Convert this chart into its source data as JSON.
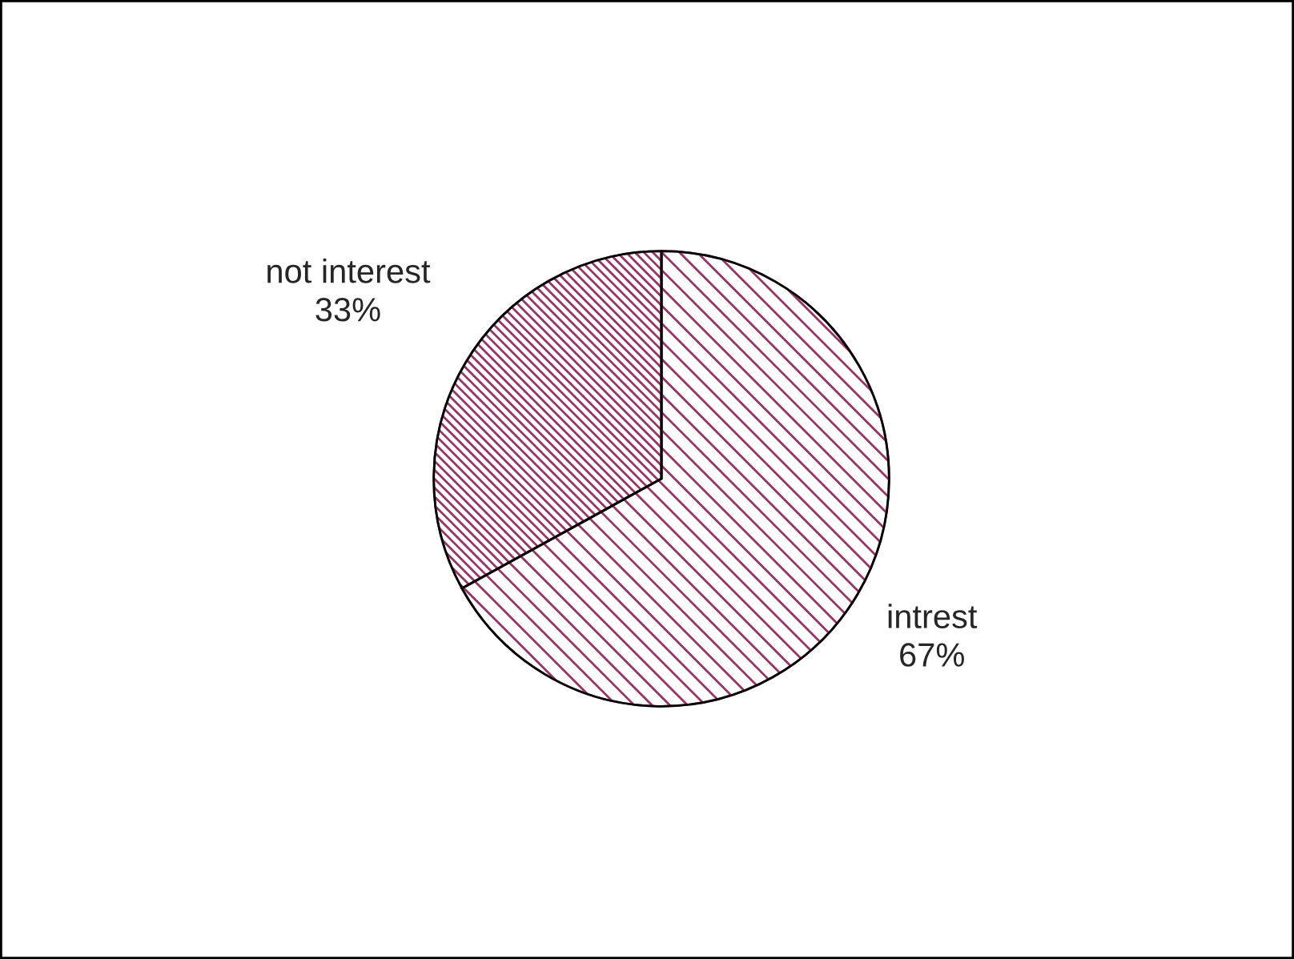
{
  "chart_data": {
    "type": "pie",
    "categories": [
      "intrest",
      "not interest"
    ],
    "values": [
      67,
      33
    ],
    "value_labels": [
      "67%",
      "33%"
    ],
    "colors": [
      "#993366",
      "#993366"
    ],
    "legend": false
  }
}
